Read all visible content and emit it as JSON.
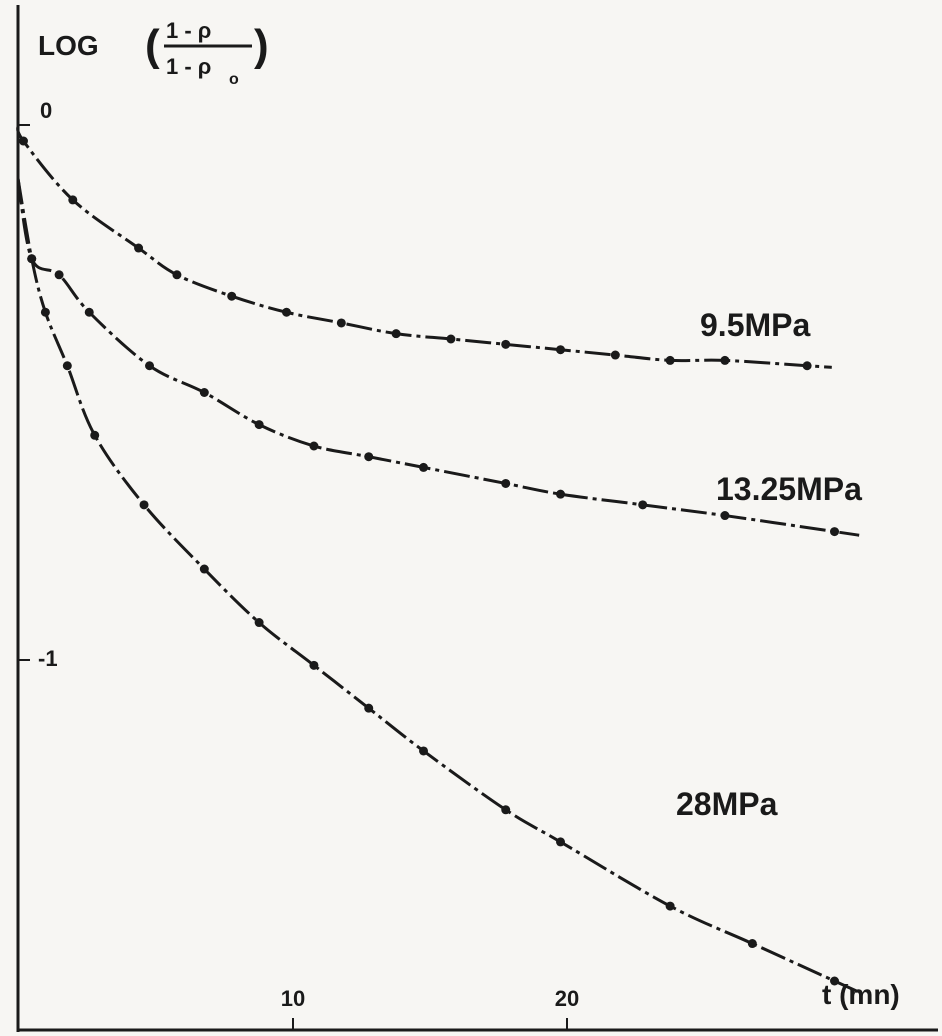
{
  "chart_data": {
    "type": "line",
    "ylabel": {
      "prefix": "LOG",
      "numerator": "1 - ρ",
      "denominator_main": "1 - ρ",
      "denominator_sub": "o"
    },
    "xlabel": "t (mn)",
    "x_ticks": [
      "10",
      "20"
    ],
    "y_ticks": [
      "0",
      "-1"
    ],
    "xlim": [
      0,
      30.8
    ],
    "ylim": [
      -1.94,
      0.13
    ],
    "grid": false,
    "series": [
      {
        "name": "9.5MPa",
        "start_y": 0,
        "points": [
          {
            "x": 0.2,
            "y": -0.03
          },
          {
            "x": 2.0,
            "y": -0.14
          },
          {
            "x": 4.4,
            "y": -0.23
          },
          {
            "x": 5.8,
            "y": -0.28
          },
          {
            "x": 7.8,
            "y": -0.32
          },
          {
            "x": 9.8,
            "y": -0.35
          },
          {
            "x": 11.8,
            "y": -0.37
          },
          {
            "x": 13.8,
            "y": -0.39
          },
          {
            "x": 15.8,
            "y": -0.4
          },
          {
            "x": 17.8,
            "y": -0.41
          },
          {
            "x": 19.8,
            "y": -0.42
          },
          {
            "x": 21.8,
            "y": -0.43
          },
          {
            "x": 23.8,
            "y": -0.44
          },
          {
            "x": 25.8,
            "y": -0.44
          },
          {
            "x": 28.8,
            "y": -0.45
          }
        ]
      },
      {
        "name": "13.25MPa",
        "start_y": -0.1,
        "points": [
          {
            "x": 0.5,
            "y": -0.25
          },
          {
            "x": 1.5,
            "y": -0.28
          },
          {
            "x": 2.6,
            "y": -0.35
          },
          {
            "x": 4.8,
            "y": -0.45
          },
          {
            "x": 6.8,
            "y": -0.5
          },
          {
            "x": 8.8,
            "y": -0.56
          },
          {
            "x": 10.8,
            "y": -0.6
          },
          {
            "x": 12.8,
            "y": -0.62
          },
          {
            "x": 14.8,
            "y": -0.64
          },
          {
            "x": 17.8,
            "y": -0.67
          },
          {
            "x": 19.8,
            "y": -0.69
          },
          {
            "x": 22.8,
            "y": -0.71
          },
          {
            "x": 25.8,
            "y": -0.73
          },
          {
            "x": 29.8,
            "y": -0.76
          }
        ]
      },
      {
        "name": "28MPa",
        "start_y": -0.1,
        "points": [
          {
            "x": 0.5,
            "y": -0.25
          },
          {
            "x": 1.0,
            "y": -0.35
          },
          {
            "x": 1.8,
            "y": -0.45
          },
          {
            "x": 2.8,
            "y": -0.58
          },
          {
            "x": 4.6,
            "y": -0.71
          },
          {
            "x": 6.8,
            "y": -0.83
          },
          {
            "x": 8.8,
            "y": -0.93
          },
          {
            "x": 10.8,
            "y": -1.01
          },
          {
            "x": 12.8,
            "y": -1.09
          },
          {
            "x": 14.8,
            "y": -1.17
          },
          {
            "x": 17.8,
            "y": -1.28
          },
          {
            "x": 19.8,
            "y": -1.34
          },
          {
            "x": 23.8,
            "y": -1.46
          },
          {
            "x": 26.8,
            "y": -1.53
          },
          {
            "x": 29.8,
            "y": -1.6
          }
        ]
      }
    ]
  }
}
